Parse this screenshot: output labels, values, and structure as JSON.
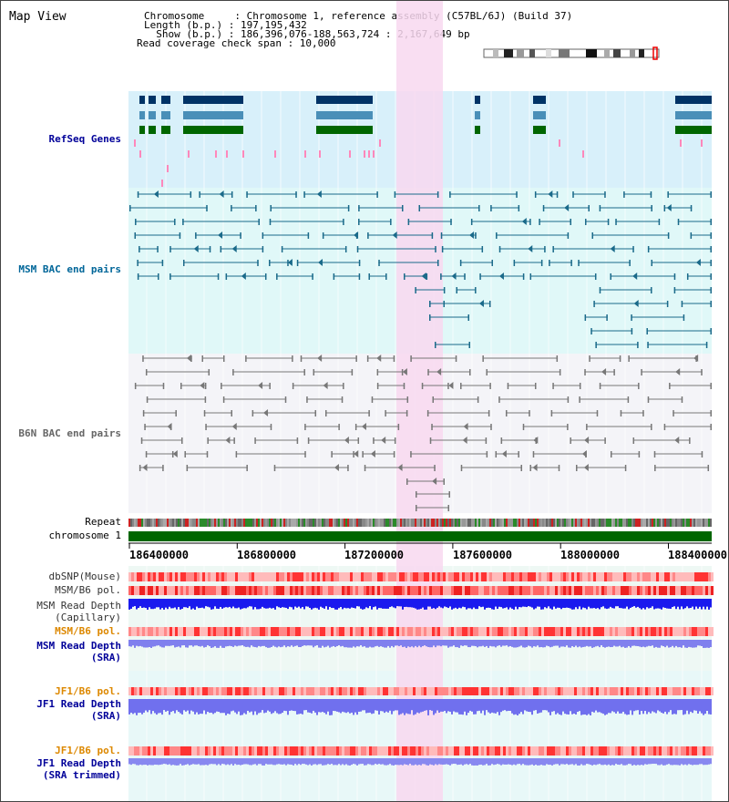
{
  "title": "Map View",
  "info": {
    "chromosome_label": "Chromosome     : Chromosome 1, reference assembly (C57BL/6J) (Build 37)",
    "length_label": "Length (b.p.) : 197,195,432",
    "show_label": "  Show (b.p.) : 186,396,076-188,563,724 : 2,167,649 bp",
    "read_coverage_label": "Read coverage check span : 10,000"
  },
  "tracks": {
    "refseq": "RefSeq Genes",
    "msm_bac": "MSM BAC end pairs",
    "b6n_bac": "B6N BAC end pairs",
    "repeat": "Repeat",
    "chromosome": "chromosome 1",
    "dbsnp": "dbSNP(Mouse)",
    "msm_b6_pol_1": "MSM/B6 pol.",
    "msm_read_depth_cap_1": "MSM Read Depth",
    "msm_read_depth_cap_2": "(Capillary)",
    "msm_b6_pol_2": "MSM/B6 pol.",
    "msm_read_depth_sra_1": "MSM Read Depth",
    "msm_read_depth_sra_2": "(SRA)",
    "jf1_b6_pol_1": "JF1/B6 pol.",
    "jf1_read_depth_1": "JF1 Read Depth",
    "jf1_read_depth_2": "(SRA)",
    "jf1_b6_pol_2": "JF1/B6 pol.",
    "jf1_read_depth_trim_1": "JF1 Read Depth",
    "jf1_read_depth_trim_2": "(SRA trimmed)"
  },
  "axis_ticks": [
    "186400000",
    "186800000",
    "187200000",
    "187600000",
    "188000000",
    "188400000"
  ],
  "colors": {
    "highlight": "#f8d8f0",
    "refseq_bg": "#d8f0fa",
    "msm_bg": "#e0f8f8",
    "b6n_bg": "#f4f4f8",
    "msm_label": "#006699",
    "b6n_label": "#666666",
    "refseq_label": "#000099",
    "pol_orange": "#dd8800",
    "depth_blue": "#000099"
  }
}
